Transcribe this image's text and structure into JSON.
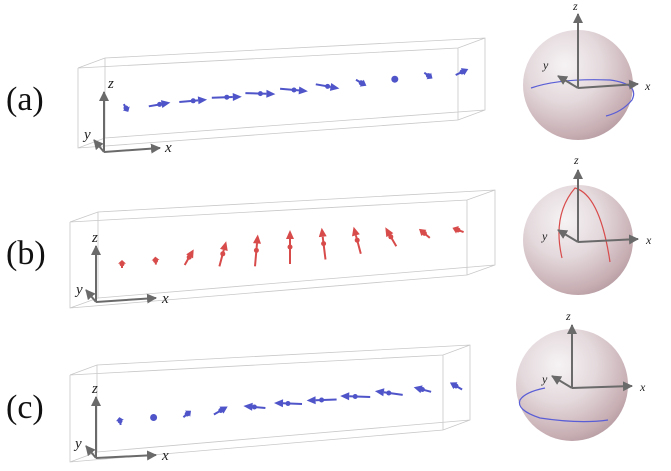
{
  "panels": [
    {
      "id": "a",
      "label": "(a)",
      "axes": {
        "x": "x",
        "y": "y",
        "z": "z"
      },
      "sphere_axes": {
        "x": "x",
        "y": "y",
        "z": "z"
      },
      "color": "#4f55c9",
      "arrows": [
        {
          "len": 9,
          "angle": -60,
          "side": "point"
        },
        {
          "len": 22,
          "angle": 10
        },
        {
          "len": 28,
          "angle": 5
        },
        {
          "len": 30,
          "angle": 2
        },
        {
          "len": 30,
          "angle": -2
        },
        {
          "len": 28,
          "angle": -5
        },
        {
          "len": 24,
          "angle": -10
        },
        {
          "len": 12,
          "angle": -30
        },
        {
          "len": 0,
          "angle": 0,
          "side": "point"
        },
        {
          "len": 10,
          "angle": -35
        },
        {
          "len": 14,
          "angle": 25
        }
      ],
      "sphere_curve": "equator-x"
    },
    {
      "id": "b",
      "label": "(b)",
      "axes": {
        "x": "x",
        "y": "y",
        "z": "z"
      },
      "sphere_axes": {
        "x": "x",
        "y": "y",
        "z": "z"
      },
      "color": "#d84b4b",
      "arrows": [
        {
          "len": 8,
          "angle": 90,
          "side": "point"
        },
        {
          "len": 8,
          "angle": 95,
          "side": "point"
        },
        {
          "len": 18,
          "angle": 60
        },
        {
          "len": 26,
          "angle": 75
        },
        {
          "len": 32,
          "angle": 85
        },
        {
          "len": 34,
          "angle": 90
        },
        {
          "len": 32,
          "angle": 97
        },
        {
          "len": 28,
          "angle": 105
        },
        {
          "len": 22,
          "angle": 120
        },
        {
          "len": 14,
          "angle": 140
        },
        {
          "len": 12,
          "angle": 160
        }
      ],
      "sphere_curve": "meridian"
    },
    {
      "id": "c",
      "label": "(c)",
      "axes": {
        "x": "x",
        "y": "y",
        "z": "z"
      },
      "sphere_axes": {
        "x": "x",
        "y": "y",
        "z": "z"
      },
      "color": "#4f55c9",
      "arrows": [
        {
          "len": 8,
          "angle": 100,
          "side": "point"
        },
        {
          "len": 0,
          "angle": 0,
          "side": "point"
        },
        {
          "len": 10,
          "angle": 40
        },
        {
          "len": 16,
          "angle": 30
        },
        {
          "len": 22,
          "angle": 175
        },
        {
          "len": 28,
          "angle": 178
        },
        {
          "len": 30,
          "angle": 182
        },
        {
          "len": 30,
          "angle": 178
        },
        {
          "len": 28,
          "angle": 172
        },
        {
          "len": 18,
          "angle": 165
        },
        {
          "len": 14,
          "angle": 150
        }
      ],
      "sphere_curve": "equator-mx"
    }
  ]
}
